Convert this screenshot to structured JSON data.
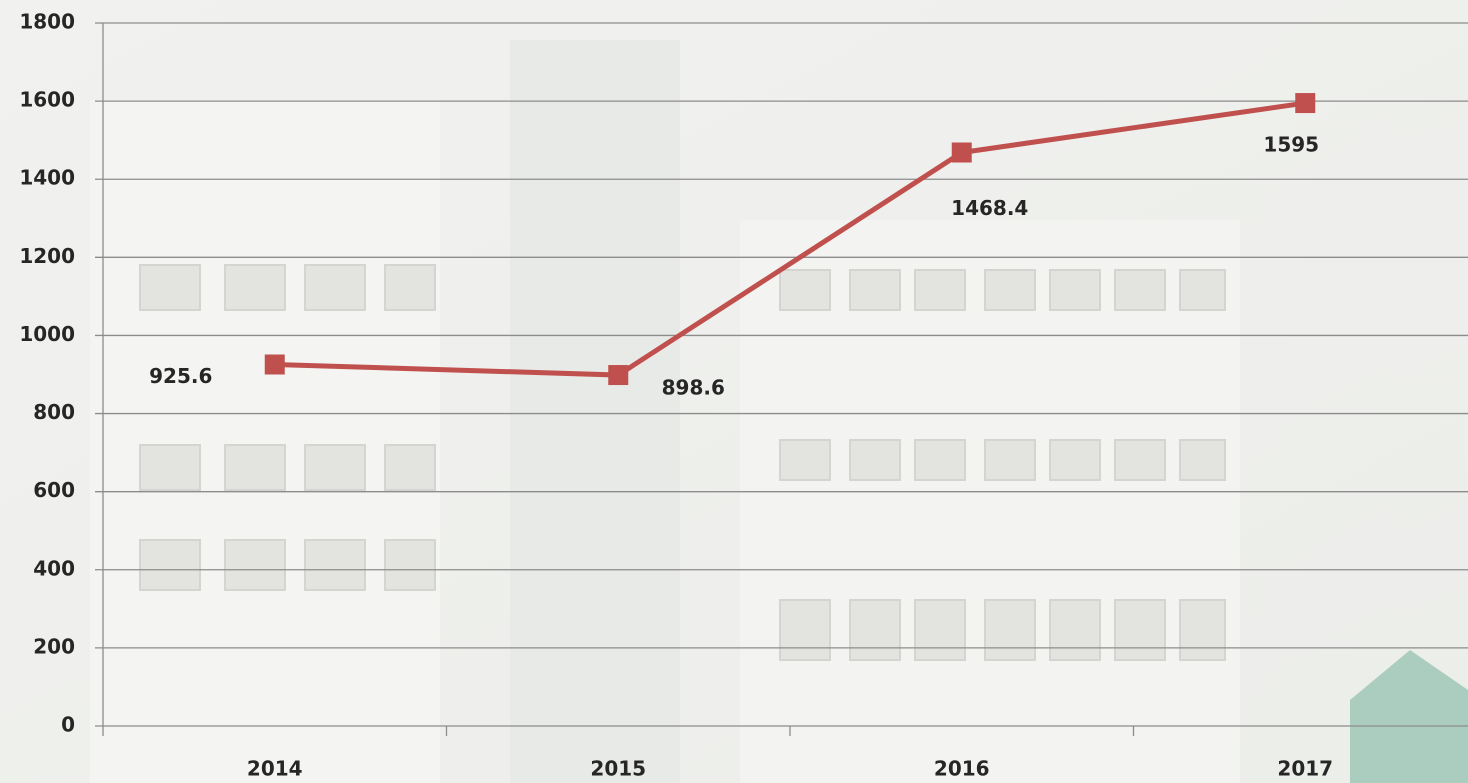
{
  "chart_data": {
    "type": "line",
    "categories": [
      "2014",
      "2015",
      "2016",
      "2017"
    ],
    "values": [
      925.6,
      898.6,
      1468.4,
      1595
    ],
    "color": "#c0504d",
    "ylim": [
      0,
      1800
    ],
    "yticks": [
      0,
      200,
      400,
      600,
      800,
      1000,
      1200,
      1400,
      1600,
      1800
    ],
    "grid": true
  }
}
